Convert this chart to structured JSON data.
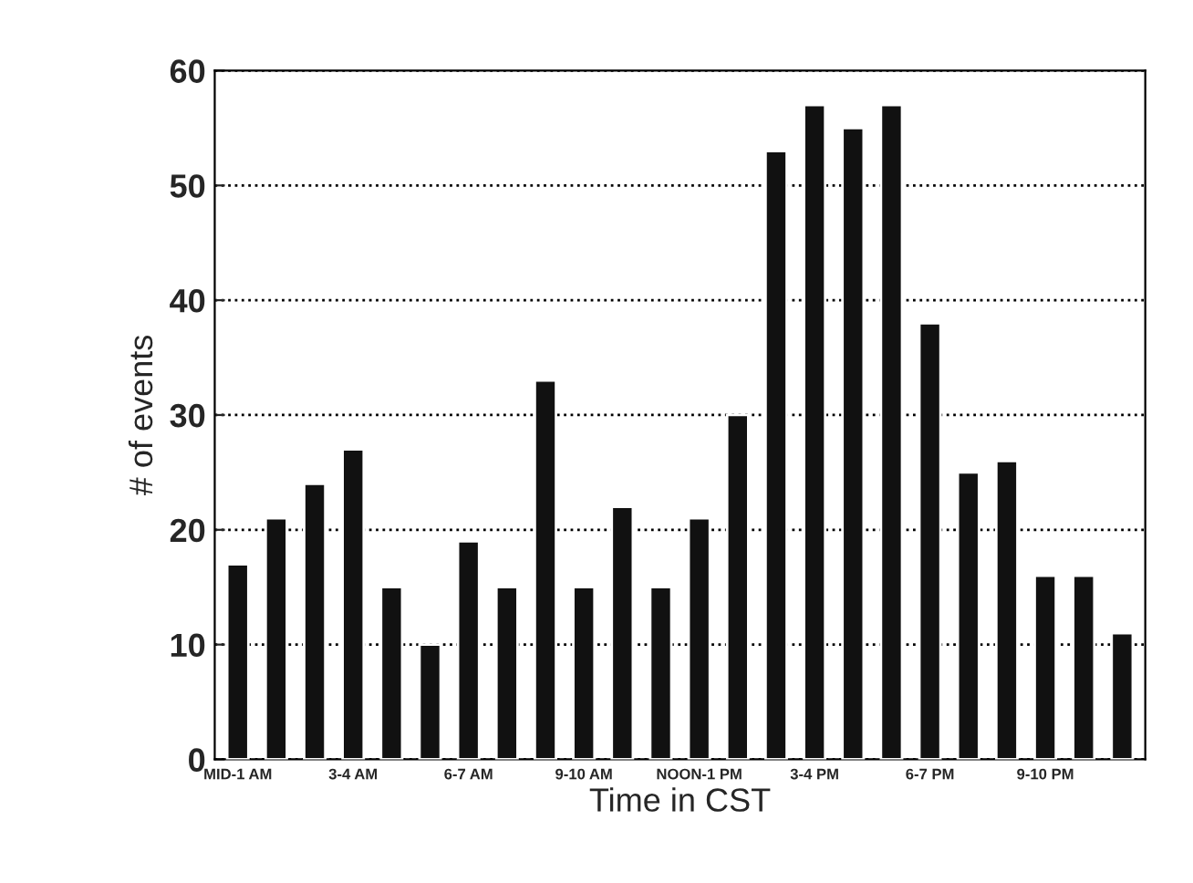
{
  "chart_data": {
    "type": "bar",
    "xlabel": "Time in CST",
    "ylabel": "# of events",
    "categories": [
      "MID-1 AM",
      null,
      null,
      "3-4 AM",
      null,
      null,
      "6-7 AM",
      null,
      null,
      "9-10 AM",
      null,
      null,
      "NOON-1 PM",
      null,
      null,
      "3-4 PM",
      null,
      null,
      "6-7 PM",
      null,
      null,
      "9-10 PM",
      null,
      null
    ],
    "values": [
      17,
      21,
      24,
      27,
      15,
      10,
      19,
      15,
      33,
      15,
      22,
      15,
      21,
      30,
      53,
      57,
      55,
      57,
      38,
      25,
      26,
      16,
      16,
      11
    ],
    "color": "#111111",
    "ylim": [
      0,
      60
    ],
    "yticks": [
      0,
      10,
      20,
      30,
      40,
      50,
      60
    ],
    "grid": "y"
  }
}
